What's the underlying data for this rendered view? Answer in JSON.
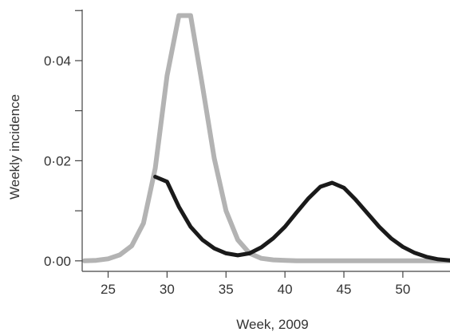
{
  "chart_data": {
    "type": "line",
    "title": "",
    "xlabel": "Week, 2009",
    "ylabel": "Weekly incidence",
    "xlim": [
      22.8,
      54
    ],
    "ylim": [
      -0.0021,
      0.0502
    ],
    "x_ticks": [
      25,
      30,
      35,
      40,
      45,
      50
    ],
    "x_tick_labels": [
      "25",
      "30",
      "35",
      "40",
      "45",
      "50"
    ],
    "y_ticks": [
      0.0,
      0.01,
      0.02,
      0.03,
      0.04,
      0.05
    ],
    "y_tick_labels": [
      "0·00",
      "",
      "0·02",
      "",
      "0·04",
      ""
    ],
    "grid": false,
    "legend": "none",
    "series": [
      {
        "color": "#b3b3b3",
        "x": [
          23,
          24,
          25,
          26,
          27,
          28,
          29,
          30,
          31,
          32,
          33,
          34,
          35,
          36,
          37,
          38,
          39,
          40,
          41,
          42,
          43,
          44,
          45,
          46,
          47,
          48,
          49,
          50,
          51,
          52,
          53,
          54
        ],
        "y": [
          0.0,
          0.0001,
          0.0004,
          0.0012,
          0.003,
          0.0075,
          0.0185,
          0.037,
          0.049,
          0.049,
          0.035,
          0.0205,
          0.01,
          0.0042,
          0.0015,
          0.0005,
          0.0002,
          0.0001,
          0.0,
          0.0,
          0.0,
          0.0,
          0.0,
          0.0,
          0.0,
          0.0,
          0.0,
          0.0,
          0.0,
          0.0,
          0.0,
          0.0
        ]
      },
      {
        "color": "#1a1a1a",
        "x": [
          29,
          30,
          31,
          32,
          33,
          34,
          35,
          36,
          37,
          38,
          39,
          40,
          41,
          42,
          43,
          44,
          45,
          46,
          47,
          48,
          49,
          50,
          51,
          52,
          53,
          54
        ],
        "y": [
          0.0168,
          0.0158,
          0.0108,
          0.0068,
          0.0042,
          0.0025,
          0.0015,
          0.0011,
          0.0015,
          0.0027,
          0.0045,
          0.0068,
          0.0097,
          0.0125,
          0.0148,
          0.0156,
          0.0146,
          0.0122,
          0.0095,
          0.0068,
          0.0045,
          0.0028,
          0.0016,
          0.0008,
          0.0003,
          0.0001
        ]
      }
    ]
  }
}
